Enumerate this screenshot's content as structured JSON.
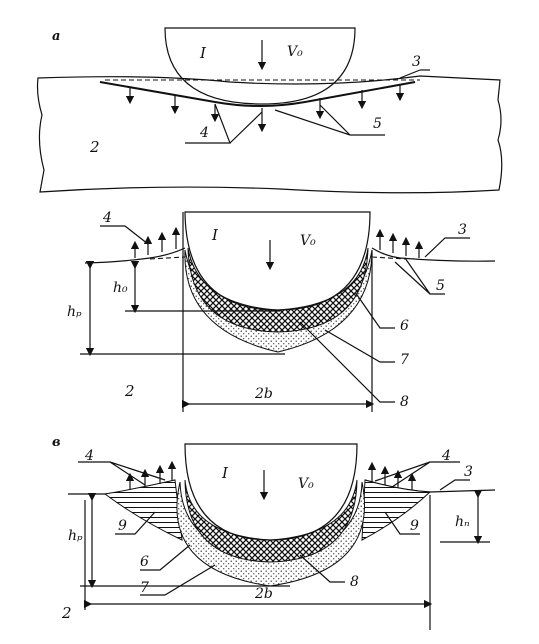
{
  "panels": [
    {
      "letter": "a",
      "labels": {
        "indenter": "I",
        "velocity": "V₀",
        "body": "2",
        "n3": "3",
        "n4": "4",
        "n5": "5"
      }
    },
    {
      "letter": "",
      "labels": {
        "indenter": "I",
        "velocity": "V₀",
        "body": "2",
        "n3": "3",
        "n4": "4",
        "n5": "5",
        "n6": "6",
        "n7": "7",
        "n8": "8",
        "h0": "h₀",
        "hp": "hₚ",
        "width": "2b"
      }
    },
    {
      "letter": "в",
      "labels": {
        "indenter": "I",
        "velocity": "V₀",
        "body": "2",
        "n3": "3",
        "n4a": "4",
        "n4b": "4",
        "n6": "6",
        "n7": "7",
        "n8": "8",
        "n9a": "9",
        "n9b": "9",
        "hp": "hₚ",
        "hn": "hₙ",
        "width": "2b"
      }
    }
  ]
}
